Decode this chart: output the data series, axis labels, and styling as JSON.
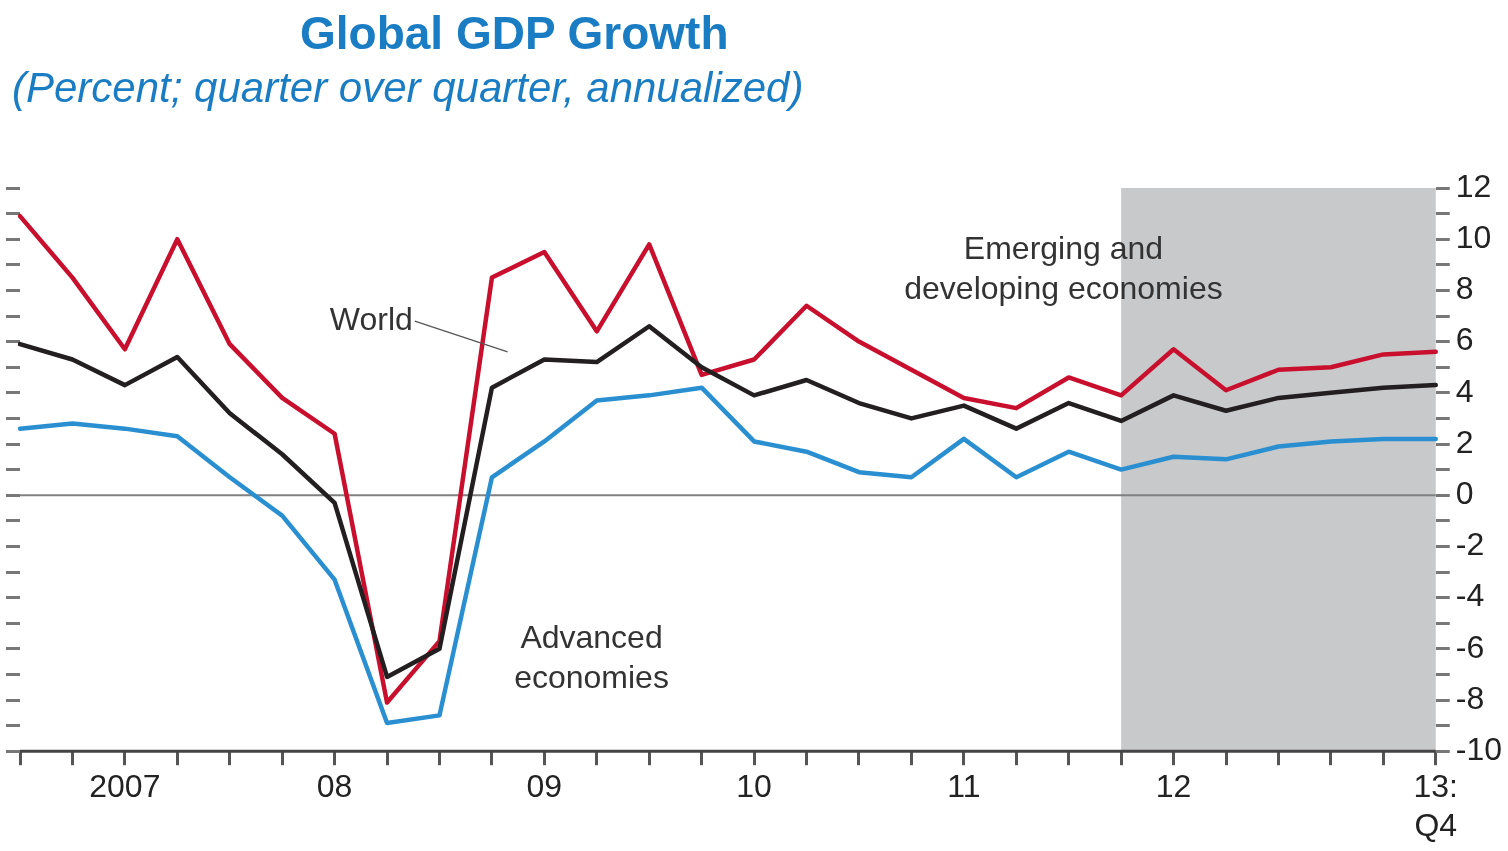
{
  "chart_data": {
    "type": "line",
    "title": "Global GDP Growth",
    "subtitle": "(Percent; quarter over quarter, annualized)",
    "categories": [
      null,
      null,
      "2007",
      null,
      null,
      null,
      "08",
      null,
      null,
      null,
      "09",
      null,
      null,
      null,
      "10",
      null,
      null,
      null,
      "11",
      null,
      null,
      null,
      "12",
      null,
      null,
      null,
      null,
      "13:\nQ4"
    ],
    "series": [
      {
        "name": "World",
        "color": "#231f20",
        "values": [
          5.9,
          5.3,
          4.3,
          5.4,
          3.2,
          1.6,
          -0.3,
          -7.1,
          -6.0,
          4.2,
          5.3,
          5.2,
          6.6,
          5.0,
          3.9,
          4.5,
          3.6,
          3.0,
          3.5,
          2.6,
          3.6,
          2.9,
          3.9,
          3.3,
          3.8,
          4.0,
          4.2,
          4.3
        ]
      },
      {
        "name": "Emerging and developing economies",
        "color": "#c8102e",
        "values": [
          10.9,
          8.5,
          5.7,
          10.0,
          5.9,
          3.8,
          2.4,
          -8.1,
          -5.7,
          8.5,
          9.5,
          6.4,
          9.8,
          4.7,
          5.3,
          7.4,
          6.0,
          4.9,
          3.8,
          3.4,
          4.6,
          3.9,
          5.7,
          4.1,
          4.9,
          5.0,
          5.5,
          5.6
        ]
      },
      {
        "name": "Advanced economies",
        "color": "#2a8fd0",
        "values": [
          2.6,
          2.8,
          2.6,
          2.3,
          0.7,
          -0.8,
          -3.3,
          -8.9,
          -8.6,
          0.7,
          2.1,
          3.7,
          3.9,
          4.2,
          2.1,
          1.7,
          0.9,
          0.7,
          2.2,
          0.7,
          1.7,
          1.0,
          1.5,
          1.4,
          1.9,
          2.1,
          2.2,
          2.2
        ]
      }
    ],
    "ylim": [
      -10,
      12
    ],
    "yticks": [
      -10,
      {
        "value": -9,
        "label": null
      },
      -8,
      {
        "value": -7,
        "label": null
      },
      -6,
      {
        "value": -5,
        "label": null
      },
      -4,
      {
        "value": -3,
        "label": null
      },
      -2,
      {
        "value": -1,
        "label": null
      },
      0,
      {
        "value": 1,
        "label": null
      },
      2,
      {
        "value": 3,
        "label": null
      },
      4,
      {
        "value": 5,
        "label": null
      },
      6,
      {
        "value": 7,
        "label": null
      },
      8,
      {
        "value": 9,
        "label": null
      },
      10,
      {
        "value": 11,
        "label": null
      },
      12
    ],
    "ref_lines": [
      {
        "axis": "y",
        "value": 0,
        "color": "#808080"
      }
    ],
    "grid": false,
    "legend": false,
    "marker": "none",
    "line_style": "solid"
  }
}
